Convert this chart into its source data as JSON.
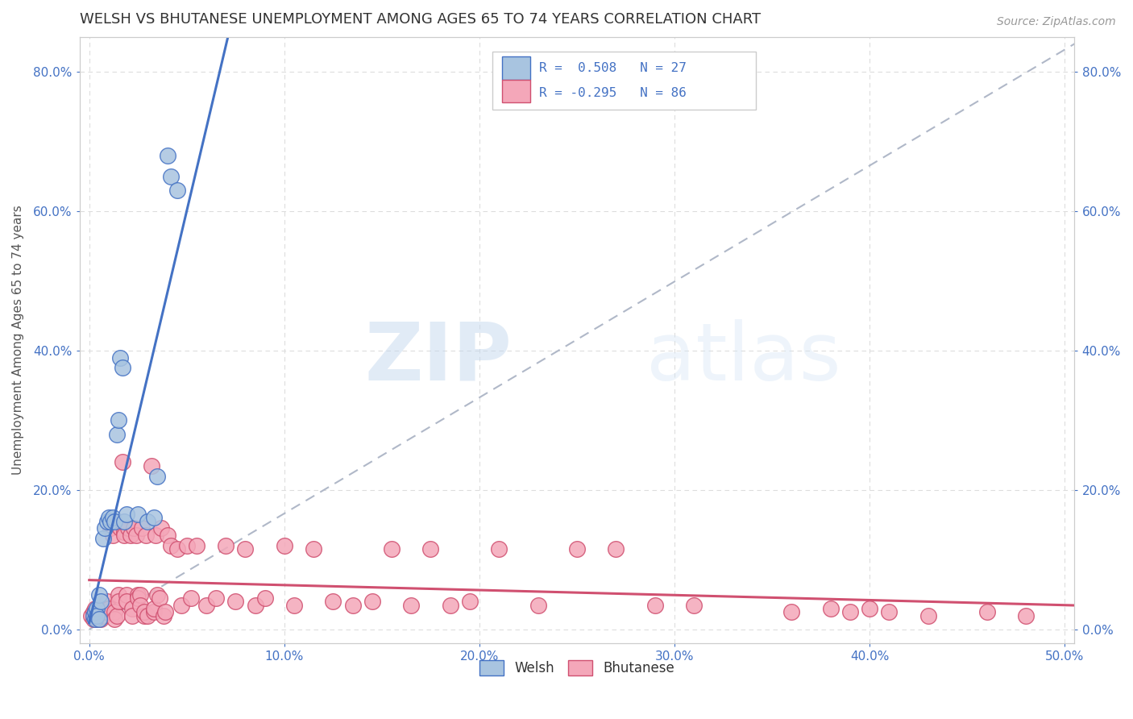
{
  "title": "WELSH VS BHUTANESE UNEMPLOYMENT AMONG AGES 65 TO 74 YEARS CORRELATION CHART",
  "source": "Source: ZipAtlas.com",
  "ylabel": "Unemployment Among Ages 65 to 74 years",
  "xlim": [
    -0.005,
    0.505
  ],
  "ylim": [
    -0.02,
    0.85
  ],
  "xticks": [
    0.0,
    0.1,
    0.2,
    0.3,
    0.4,
    0.5
  ],
  "yticks": [
    0.0,
    0.2,
    0.4,
    0.6,
    0.8
  ],
  "welsh_color": "#a8c4e0",
  "welsh_line_color": "#4472c4",
  "bhutanese_color": "#f4a7b9",
  "bhutanese_line_color": "#d05070",
  "diagonal_color": "#b0b8c8",
  "welsh_points": [
    [
      0.002,
      0.02
    ],
    [
      0.003,
      0.015
    ],
    [
      0.003,
      0.025
    ],
    [
      0.004,
      0.03
    ],
    [
      0.004,
      0.02
    ],
    [
      0.005,
      0.015
    ],
    [
      0.005,
      0.05
    ],
    [
      0.006,
      0.04
    ],
    [
      0.007,
      0.13
    ],
    [
      0.008,
      0.145
    ],
    [
      0.009,
      0.155
    ],
    [
      0.01,
      0.16
    ],
    [
      0.011,
      0.155
    ],
    [
      0.012,
      0.16
    ],
    [
      0.013,
      0.155
    ],
    [
      0.014,
      0.28
    ],
    [
      0.015,
      0.3
    ],
    [
      0.016,
      0.39
    ],
    [
      0.017,
      0.375
    ],
    [
      0.018,
      0.155
    ],
    [
      0.019,
      0.165
    ],
    [
      0.025,
      0.165
    ],
    [
      0.03,
      0.155
    ],
    [
      0.033,
      0.16
    ],
    [
      0.035,
      0.22
    ],
    [
      0.04,
      0.68
    ],
    [
      0.042,
      0.65
    ],
    [
      0.045,
      0.63
    ]
  ],
  "bhutanese_points": [
    [
      0.001,
      0.02
    ],
    [
      0.002,
      0.025
    ],
    [
      0.002,
      0.015
    ],
    [
      0.003,
      0.02
    ],
    [
      0.003,
      0.03
    ],
    [
      0.004,
      0.025
    ],
    [
      0.004,
      0.015
    ],
    [
      0.005,
      0.02
    ],
    [
      0.005,
      0.03
    ],
    [
      0.006,
      0.025
    ],
    [
      0.006,
      0.015
    ],
    [
      0.007,
      0.02
    ],
    [
      0.007,
      0.03
    ],
    [
      0.008,
      0.025
    ],
    [
      0.008,
      0.035
    ],
    [
      0.009,
      0.04
    ],
    [
      0.009,
      0.025
    ],
    [
      0.01,
      0.03
    ],
    [
      0.011,
      0.145
    ],
    [
      0.012,
      0.155
    ],
    [
      0.012,
      0.135
    ],
    [
      0.013,
      0.025
    ],
    [
      0.013,
      0.015
    ],
    [
      0.014,
      0.02
    ],
    [
      0.015,
      0.05
    ],
    [
      0.015,
      0.04
    ],
    [
      0.016,
      0.145
    ],
    [
      0.017,
      0.24
    ],
    [
      0.018,
      0.14
    ],
    [
      0.018,
      0.135
    ],
    [
      0.019,
      0.05
    ],
    [
      0.019,
      0.04
    ],
    [
      0.02,
      0.145
    ],
    [
      0.021,
      0.135
    ],
    [
      0.022,
      0.03
    ],
    [
      0.022,
      0.02
    ],
    [
      0.023,
      0.145
    ],
    [
      0.024,
      0.135
    ],
    [
      0.025,
      0.05
    ],
    [
      0.025,
      0.045
    ],
    [
      0.026,
      0.05
    ],
    [
      0.026,
      0.035
    ],
    [
      0.027,
      0.145
    ],
    [
      0.028,
      0.02
    ],
    [
      0.028,
      0.025
    ],
    [
      0.029,
      0.135
    ],
    [
      0.03,
      0.02
    ],
    [
      0.032,
      0.235
    ],
    [
      0.033,
      0.025
    ],
    [
      0.033,
      0.03
    ],
    [
      0.034,
      0.135
    ],
    [
      0.035,
      0.05
    ],
    [
      0.036,
      0.045
    ],
    [
      0.037,
      0.145
    ],
    [
      0.038,
      0.02
    ],
    [
      0.039,
      0.025
    ],
    [
      0.04,
      0.135
    ],
    [
      0.042,
      0.12
    ],
    [
      0.045,
      0.115
    ],
    [
      0.047,
      0.035
    ],
    [
      0.05,
      0.12
    ],
    [
      0.052,
      0.045
    ],
    [
      0.055,
      0.12
    ],
    [
      0.06,
      0.035
    ],
    [
      0.065,
      0.045
    ],
    [
      0.07,
      0.12
    ],
    [
      0.075,
      0.04
    ],
    [
      0.08,
      0.115
    ],
    [
      0.085,
      0.035
    ],
    [
      0.09,
      0.045
    ],
    [
      0.1,
      0.12
    ],
    [
      0.105,
      0.035
    ],
    [
      0.115,
      0.115
    ],
    [
      0.125,
      0.04
    ],
    [
      0.135,
      0.035
    ],
    [
      0.145,
      0.04
    ],
    [
      0.155,
      0.115
    ],
    [
      0.165,
      0.035
    ],
    [
      0.175,
      0.115
    ],
    [
      0.185,
      0.035
    ],
    [
      0.195,
      0.04
    ],
    [
      0.21,
      0.115
    ],
    [
      0.23,
      0.035
    ],
    [
      0.25,
      0.115
    ],
    [
      0.27,
      0.115
    ],
    [
      0.29,
      0.035
    ],
    [
      0.31,
      0.035
    ],
    [
      0.36,
      0.025
    ],
    [
      0.38,
      0.03
    ],
    [
      0.39,
      0.025
    ],
    [
      0.4,
      0.03
    ],
    [
      0.41,
      0.025
    ],
    [
      0.43,
      0.02
    ],
    [
      0.46,
      0.025
    ],
    [
      0.48,
      0.02
    ]
  ],
  "watermark_zip": "ZIP",
  "watermark_atlas": "atlas",
  "title_fontsize": 13,
  "axis_label_fontsize": 11,
  "tick_fontsize": 11,
  "source_fontsize": 10
}
